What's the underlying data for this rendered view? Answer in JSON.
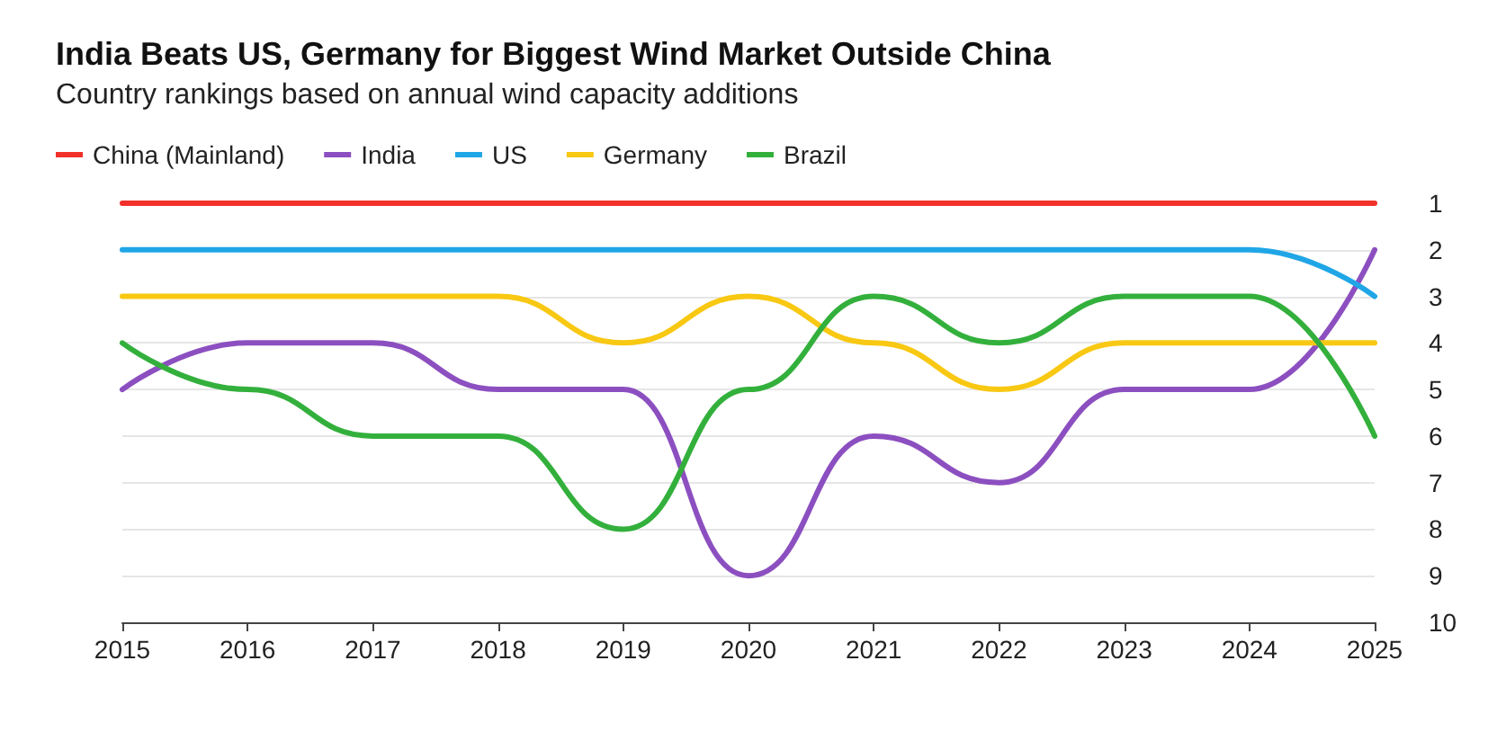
{
  "chart_data": {
    "type": "line",
    "title": "India Beats US, Germany for Biggest Wind Market Outside China",
    "subtitle": "Country rankings based on annual wind capacity additions",
    "categories": [
      "2015",
      "2016",
      "2017",
      "2018",
      "2019",
      "2020",
      "2021",
      "2022",
      "2023",
      "2024",
      "2025"
    ],
    "series": [
      {
        "name": "China (Mainland)",
        "color": "#f2312a",
        "values": [
          1,
          1,
          1,
          1,
          1,
          1,
          1,
          1,
          1,
          1,
          1
        ]
      },
      {
        "name": "India",
        "color": "#8c4fc0",
        "values": [
          5,
          4,
          4,
          5,
          5,
          9,
          6,
          7,
          5,
          5,
          2
        ]
      },
      {
        "name": "US",
        "color": "#20a6e6",
        "values": [
          2,
          2,
          2,
          2,
          2,
          2,
          2,
          2,
          2,
          2,
          3
        ]
      },
      {
        "name": "Germany",
        "color": "#f8c812",
        "values": [
          3,
          3,
          3,
          3,
          4,
          3,
          4,
          5,
          4,
          4,
          4
        ]
      },
      {
        "name": "Brazil",
        "color": "#33b03c",
        "values": [
          4,
          5,
          6,
          6,
          8,
          5,
          3,
          4,
          3,
          3,
          6
        ]
      }
    ],
    "ylim": [
      10,
      1
    ],
    "yticks": [
      1,
      2,
      3,
      4,
      5,
      6,
      7,
      8,
      9,
      10
    ],
    "grid": "y",
    "legend": "top left",
    "marker": "none",
    "line_style": "solid"
  }
}
